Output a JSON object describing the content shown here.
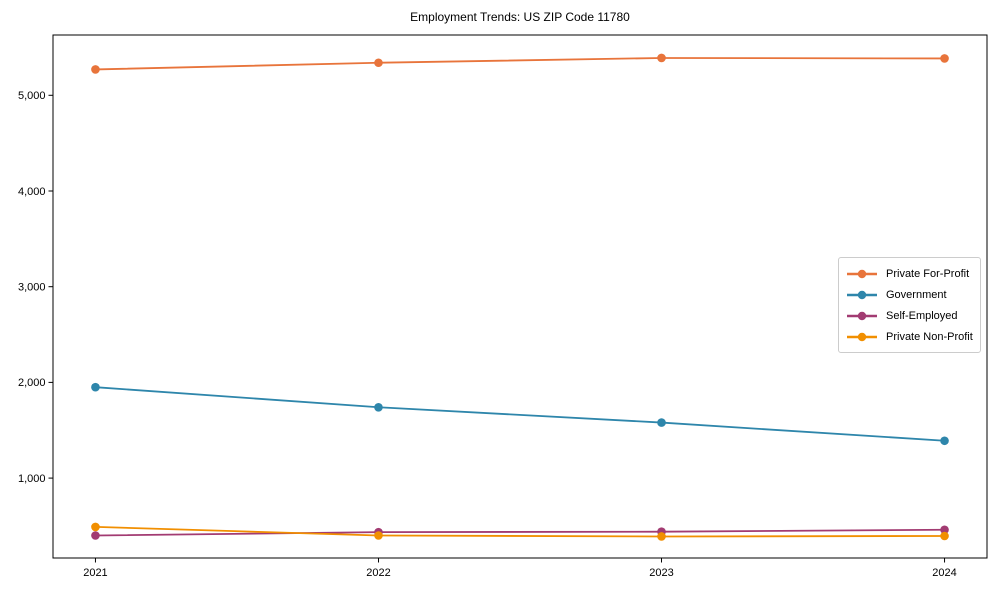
{
  "page": {
    "background_color": "#ffffff",
    "text_color": "#000000"
  },
  "chart_data": {
    "type": "line",
    "title": "Employment Trends: US ZIP Code 11780",
    "xlabel": "",
    "ylabel": "",
    "x": [
      2021,
      2022,
      2023,
      2024
    ],
    "x_tick_labels": [
      "2021",
      "2022",
      "2023",
      "2024"
    ],
    "y_ticks": [
      {
        "value": 1000,
        "label": "1,000"
      },
      {
        "value": 2000,
        "label": "2,000"
      },
      {
        "value": 3000,
        "label": "3,000"
      },
      {
        "value": 4000,
        "label": "4,000"
      },
      {
        "value": 5000,
        "label": "5,000"
      }
    ],
    "xlim": [
      2020.85,
      2024.15
    ],
    "ylim": [
      165,
      5630
    ],
    "grid": false,
    "frame": true,
    "axis_color": "#000000",
    "marker": "circle",
    "legend": {
      "position": "center-right",
      "background": "#ffffff",
      "border_color": "#cccccc"
    },
    "series": [
      {
        "name": "Private For-Profit",
        "color": "#e8743b",
        "values": [
          5270,
          5340,
          5390,
          5385
        ]
      },
      {
        "name": "Government",
        "color": "#2e86ab",
        "values": [
          1950,
          1740,
          1580,
          1390
        ]
      },
      {
        "name": "Self-Employed",
        "color": "#a23b72",
        "values": [
          400,
          435,
          440,
          460
        ]
      },
      {
        "name": "Private Non-Profit",
        "color": "#f18f01",
        "values": [
          490,
          400,
          390,
          395
        ]
      }
    ]
  }
}
